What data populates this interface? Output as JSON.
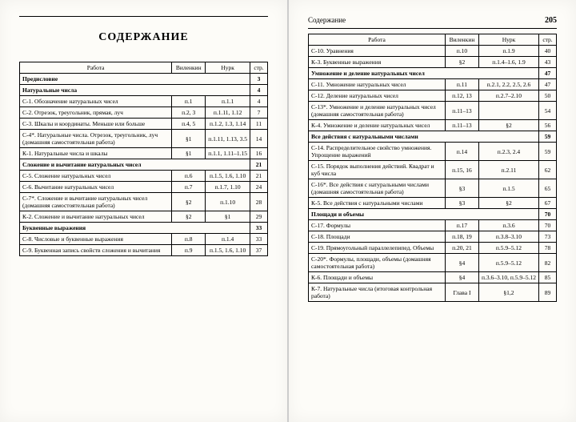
{
  "left": {
    "title": "СОДЕРЖАНИЕ",
    "headers": [
      "Работа",
      "Виленкин",
      "Нурк",
      "стр."
    ],
    "rows": [
      {
        "type": "section",
        "work": "Предисловие",
        "pg": "3"
      },
      {
        "type": "section",
        "work": "Натуральные числа",
        "pg": "4"
      },
      {
        "type": "row",
        "work": "С-1. Обозначение натуральных чисел",
        "v": "п.1",
        "n": "п.1.1",
        "pg": "4"
      },
      {
        "type": "row",
        "work": "С-2. Отрезок, треугольник, прямая, луч",
        "v": "п.2, 3",
        "n": "п.1.11, 1.12",
        "pg": "7"
      },
      {
        "type": "row",
        "work": "С-3. Шкалы и координаты. Меньше или больше",
        "v": "п.4, 5",
        "n": "п.1.2, 1.3, 1.14",
        "pg": "11"
      },
      {
        "type": "row",
        "work": "С-4*. Натуральные числа. Отрезок, треугольник, луч (домашняя самостоятельная работа)",
        "v": "§1",
        "n": "п.1.11, 1.13, 3.5",
        "pg": "14"
      },
      {
        "type": "row",
        "work": "К-1. Натуральные числа и шкалы",
        "v": "§1",
        "n": "п.1.1, 1.11–1.15",
        "pg": "16"
      },
      {
        "type": "section",
        "work": "Сложение и вычитание натуральных чисел",
        "pg": "21"
      },
      {
        "type": "row",
        "work": "С-5. Сложение натуральных чисел",
        "v": "п.6",
        "n": "п.1.5, 1.6, 1.10",
        "pg": "21"
      },
      {
        "type": "row",
        "work": "С-6. Вычитание натуральных чисел",
        "v": "п.7",
        "n": "п.1.7, 1.10",
        "pg": "24"
      },
      {
        "type": "row",
        "work": "С-7*. Сложение и вычитание натуральных чисел (домашняя самостоятельная работа)",
        "v": "§2",
        "n": "п.1.10",
        "pg": "28"
      },
      {
        "type": "row",
        "work": "К-2. Сложение и вычитание натуральных чисел",
        "v": "§2",
        "n": "§1",
        "pg": "29"
      },
      {
        "type": "section",
        "work": "Буквенные выражения",
        "pg": "33"
      },
      {
        "type": "row",
        "work": "С-8. Числовые и буквенные выражения",
        "v": "п.8",
        "n": "п.1.4",
        "pg": "33"
      },
      {
        "type": "row",
        "work": "С-9. Буквенная запись свойств сложения и вычитания",
        "v": "п.9",
        "n": "п.1.5, 1.6, 1.10",
        "pg": "37"
      }
    ]
  },
  "right": {
    "running_head": "Содержание",
    "page_num": "205",
    "headers": [
      "Работа",
      "Виленкин",
      "Нурк",
      "стр."
    ],
    "rows": [
      {
        "type": "row",
        "work": "С-10. Уравнения",
        "v": "п.10",
        "n": "п.1.9",
        "pg": "40"
      },
      {
        "type": "row",
        "work": "К-3. Буквенные выражения",
        "v": "§2",
        "n": "п.1.4–1.6, 1.9",
        "pg": "43"
      },
      {
        "type": "section",
        "work": "Умножение и деление натуральных чисел",
        "pg": "47"
      },
      {
        "type": "row",
        "work": "С-11. Умножение натуральных чисел",
        "v": "п.11",
        "n": "п.2.1, 2.2, 2.5, 2.6",
        "pg": "47"
      },
      {
        "type": "row",
        "work": "С-12. Деление натуральных чисел",
        "v": "п.12, 13",
        "n": "п.2.7–2.10",
        "pg": "50"
      },
      {
        "type": "row",
        "work": "С-13*. Умножение и деление натуральных чисел (домашняя самостоятельная работа)",
        "v": "п.11–13",
        "n": "",
        "pg": "54"
      },
      {
        "type": "row",
        "work": "К-4. Умножение и деление натуральных чисел",
        "v": "п.11–13",
        "n": "§2",
        "pg": "56"
      },
      {
        "type": "section",
        "work": "Все действия с натуральными числами",
        "pg": "59"
      },
      {
        "type": "row",
        "work": "С-14. Распределительное свойство умножения. Упрощение выражений",
        "v": "п.14",
        "n": "п.2.3, 2.4",
        "pg": "59"
      },
      {
        "type": "row",
        "work": "С-15. Порядок выполнения действий. Квадрат и куб числа",
        "v": "п.15, 16",
        "n": "п.2.11",
        "pg": "62"
      },
      {
        "type": "row",
        "work": "С-16*. Все действия с натуральными числами (домашняя самостоятельная работа)",
        "v": "§3",
        "n": "п.1.5",
        "pg": "65"
      },
      {
        "type": "row",
        "work": "К-5. Все действия с натуральными числами",
        "v": "§3",
        "n": "§2",
        "pg": "67"
      },
      {
        "type": "section",
        "work": "Площади и объемы",
        "pg": "70"
      },
      {
        "type": "row",
        "work": "С-17. Формулы",
        "v": "п.17",
        "n": "п.3.6",
        "pg": "70"
      },
      {
        "type": "row",
        "work": "С-18. Площади",
        "v": "п.18, 19",
        "n": "п.3.8–3.10",
        "pg": "73"
      },
      {
        "type": "row",
        "work": "С-19. Прямоугольный параллелепипед. Объемы",
        "v": "п.20, 21",
        "n": "п.5.9–5.12",
        "pg": "78"
      },
      {
        "type": "row",
        "work": "С-20*. Формулы, площади, объемы (домашняя самостоятельная работа)",
        "v": "§4",
        "n": "п.5.9–5.12",
        "pg": "82"
      },
      {
        "type": "row",
        "work": "К-6. Площади и объемы",
        "v": "§4",
        "n": "п.3.6–3.10, п.5.9–5.12",
        "pg": "85"
      },
      {
        "type": "row",
        "work": "К-7. Натуральные числа (итоговая контрольная работа)",
        "v": "Глава I",
        "n": "§1,2",
        "pg": "89"
      }
    ]
  }
}
